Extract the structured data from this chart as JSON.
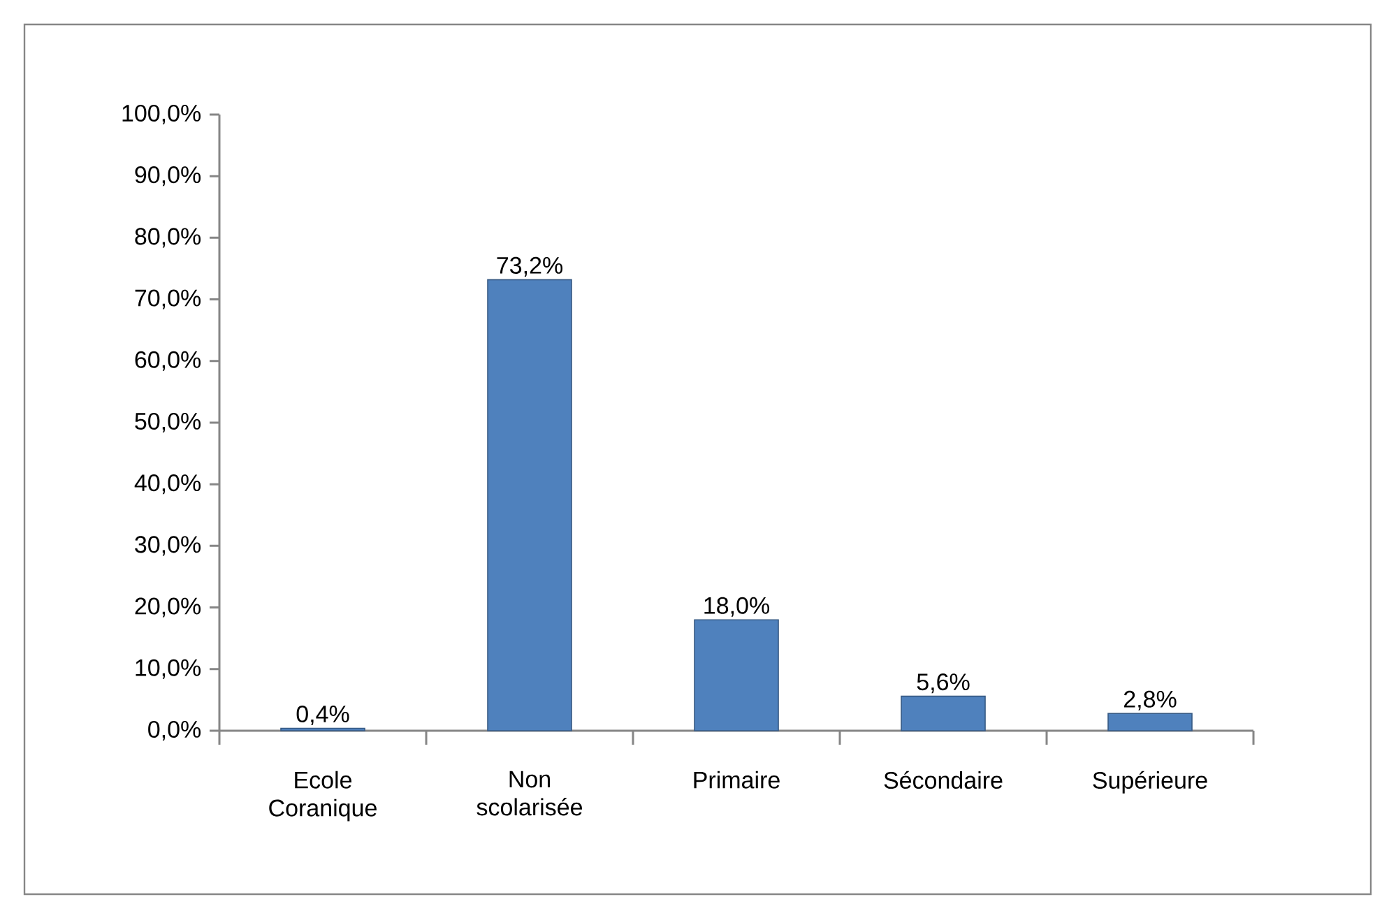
{
  "chart_data": {
    "type": "bar",
    "categories": [
      "Ecole Coranique",
      "Non scolarisée",
      "Primaire",
      "Sécondaire",
      "Supérieure"
    ],
    "values": [
      0.4,
      73.2,
      18.0,
      5.6,
      2.8
    ],
    "value_labels": [
      "0,4%",
      "73,2%",
      "18,0%",
      "5,6%",
      "2,8%"
    ],
    "color": "#4f81bd",
    "ylim": [
      0,
      100
    ],
    "yticks": [
      {
        "value": 0,
        "label": "0,0%"
      },
      {
        "value": 10,
        "label": "10,0%"
      },
      {
        "value": 20,
        "label": "20,0%"
      },
      {
        "value": 30,
        "label": "30,0%"
      },
      {
        "value": 40,
        "label": "40,0%"
      },
      {
        "value": 50,
        "label": "50,0%"
      },
      {
        "value": 60,
        "label": "60,0%"
      },
      {
        "value": 70,
        "label": "70,0%"
      },
      {
        "value": 80,
        "label": "80,0%"
      },
      {
        "value": 90,
        "label": "90,0%"
      },
      {
        "value": 100,
        "label": "100,0%"
      }
    ]
  }
}
